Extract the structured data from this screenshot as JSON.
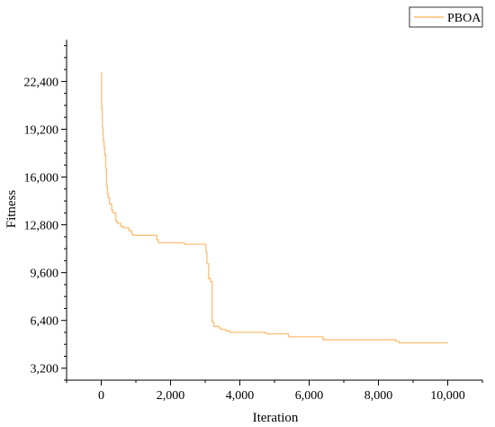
{
  "chart_data": {
    "type": "line",
    "title": "",
    "xlabel": "Iteration",
    "ylabel": "Fitness",
    "xlim": [
      -1000,
      11000
    ],
    "ylim": [
      2400,
      25200
    ],
    "x_ticks": [
      0,
      2000,
      4000,
      6000,
      8000,
      10000
    ],
    "x_tick_labels": [
      "0",
      "2,000",
      "4,000",
      "6,000",
      "8,000",
      "10,000"
    ],
    "y_ticks": [
      3200,
      6400,
      9600,
      12800,
      16000,
      19200,
      22400
    ],
    "y_tick_labels": [
      "3,200",
      "6,400",
      "9,600",
      "12,800",
      "16,000",
      "19,200",
      "22,400"
    ],
    "legend_position": "top-right",
    "grid": false,
    "series": [
      {
        "name": "PBOA",
        "color": "#FBBF77",
        "x": [
          0,
          10,
          25,
          30,
          50,
          60,
          80,
          100,
          130,
          150,
          180,
          200,
          240,
          300,
          330,
          380,
          420,
          440,
          480,
          560,
          600,
          640,
          760,
          800,
          880,
          920,
          1000,
          1100,
          1500,
          1600,
          1650,
          1800,
          2000,
          2400,
          2600,
          3000,
          3020,
          3050,
          3100,
          3150,
          3200,
          3250,
          3300,
          3400,
          3450,
          3600,
          3700,
          3800,
          4700,
          4750,
          5000,
          5300,
          5400,
          5500,
          6300,
          6400,
          6500,
          8400,
          8500,
          8600,
          9000,
          10000
        ],
        "y": [
          23000,
          20600,
          20000,
          19300,
          18800,
          18400,
          18000,
          17500,
          16600,
          15400,
          14900,
          14600,
          14200,
          13800,
          13600,
          13600,
          13100,
          13000,
          12900,
          12700,
          12700,
          12600,
          12600,
          12400,
          12200,
          12100,
          12100,
          12100,
          12100,
          11800,
          11600,
          11600,
          11600,
          11500,
          11500,
          11500,
          11000,
          10200,
          9200,
          9000,
          6300,
          6000,
          6000,
          5900,
          5800,
          5700,
          5600,
          5600,
          5600,
          5500,
          5500,
          5500,
          5300,
          5300,
          5300,
          5100,
          5100,
          5100,
          5000,
          4900,
          4900,
          4900
        ]
      }
    ]
  }
}
